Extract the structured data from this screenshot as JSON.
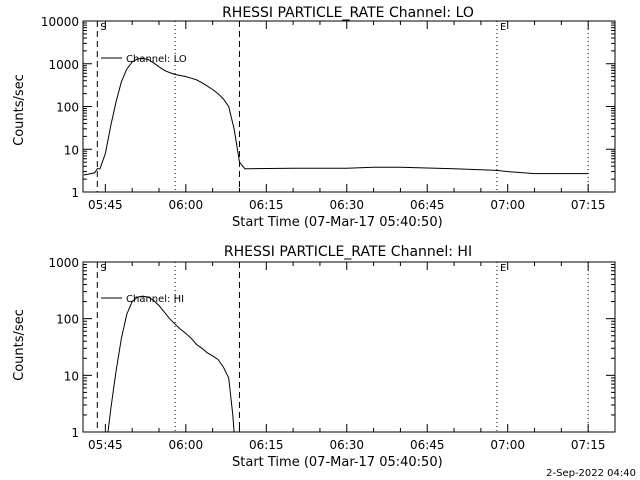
{
  "chart_data": [
    {
      "type": "line",
      "title": "RHESSI PARTICLE_RATE Channel: LO",
      "xlabel": "Start Time (07-Mar-17 05:40:50)",
      "ylabel": "Counts/sec",
      "yscale": "log",
      "ylim": [
        1,
        10000
      ],
      "xlim": [
        "05:40:50",
        "07:20:00"
      ],
      "yticks": [
        "1",
        "10",
        "100",
        "1000",
        "10000"
      ],
      "xticks": [
        "05:45",
        "06:00",
        "06:15",
        "06:30",
        "06:45",
        "07:00",
        "07:15"
      ],
      "series": [
        {
          "name": "Channel: LO",
          "x": [
            "05:41",
            "05:43",
            "05:43:30",
            "05:44",
            "05:45",
            "05:46",
            "05:47",
            "05:48",
            "05:49",
            "05:50",
            "05:51",
            "05:52",
            "05:53",
            "05:54",
            "05:55",
            "05:56",
            "05:57",
            "05:58",
            "05:59",
            "06:00",
            "06:01",
            "06:02",
            "06:03",
            "06:04",
            "06:05",
            "06:06",
            "06:07",
            "06:08",
            "06:09",
            "06:10",
            "06:11",
            "06:12",
            "06:20",
            "06:30",
            "06:35",
            "06:40",
            "06:50",
            "06:58",
            "07:00",
            "07:05",
            "07:10",
            "07:15"
          ],
          "y": [
            2.5,
            2.8,
            3.5,
            3.5,
            8,
            35,
            130,
            380,
            750,
            1100,
            1300,
            1350,
            1250,
            1050,
            850,
            700,
            620,
            560,
            530,
            500,
            460,
            420,
            360,
            300,
            250,
            200,
            150,
            100,
            30,
            5,
            3.5,
            3.5,
            3.6,
            3.6,
            3.8,
            3.8,
            3.5,
            3.2,
            3,
            2.7,
            2.7,
            2.7
          ]
        }
      ],
      "legend": "upper-left",
      "markers": [
        {
          "label": "S",
          "time": "05:43:30",
          "style": "dashed"
        },
        {
          "label": "",
          "time": "05:58",
          "style": "dotted"
        },
        {
          "label": "",
          "time": "06:10",
          "style": "dashed"
        },
        {
          "label": "E",
          "time": "06:58",
          "style": "dotted"
        },
        {
          "label": "",
          "time": "07:15",
          "style": "dotted"
        }
      ]
    },
    {
      "type": "line",
      "title": "RHESSI PARTICLE_RATE Channel: HI",
      "xlabel": "Start Time (07-Mar-17 05:40:50)",
      "ylabel": "Counts/sec",
      "yscale": "log",
      "ylim": [
        1,
        1000
      ],
      "xlim": [
        "05:40:50",
        "07:20:00"
      ],
      "yticks": [
        "1",
        "10",
        "100",
        "1000"
      ],
      "xticks": [
        "05:45",
        "06:00",
        "06:15",
        "06:30",
        "06:45",
        "07:00",
        "07:15"
      ],
      "series": [
        {
          "name": "Channel: HI",
          "x": [
            "05:45:30",
            "05:46",
            "05:47",
            "05:48",
            "05:49",
            "05:50",
            "05:51",
            "05:52",
            "05:53",
            "05:54",
            "05:55",
            "05:56",
            "05:57",
            "05:58",
            "05:59",
            "06:00",
            "06:01",
            "06:02",
            "06:03",
            "06:04",
            "06:05",
            "06:06",
            "06:07",
            "06:08",
            "06:08:45",
            "06:09"
          ],
          "y": [
            1,
            2.5,
            12,
            45,
            120,
            200,
            240,
            250,
            240,
            210,
            170,
            130,
            100,
            80,
            65,
            55,
            45,
            35,
            30,
            25,
            22,
            19,
            14,
            9,
            2,
            1
          ]
        }
      ],
      "legend": "upper-left",
      "markers": [
        {
          "label": "S",
          "time": "05:43:30",
          "style": "dashed"
        },
        {
          "label": "",
          "time": "05:58",
          "style": "dotted"
        },
        {
          "label": "",
          "time": "06:10",
          "style": "dashed"
        },
        {
          "label": "E",
          "time": "06:58",
          "style": "dotted"
        },
        {
          "label": "",
          "time": "07:15",
          "style": "dotted"
        }
      ]
    }
  ],
  "footer": {
    "timestamp": "2-Sep-2022 04:40"
  }
}
